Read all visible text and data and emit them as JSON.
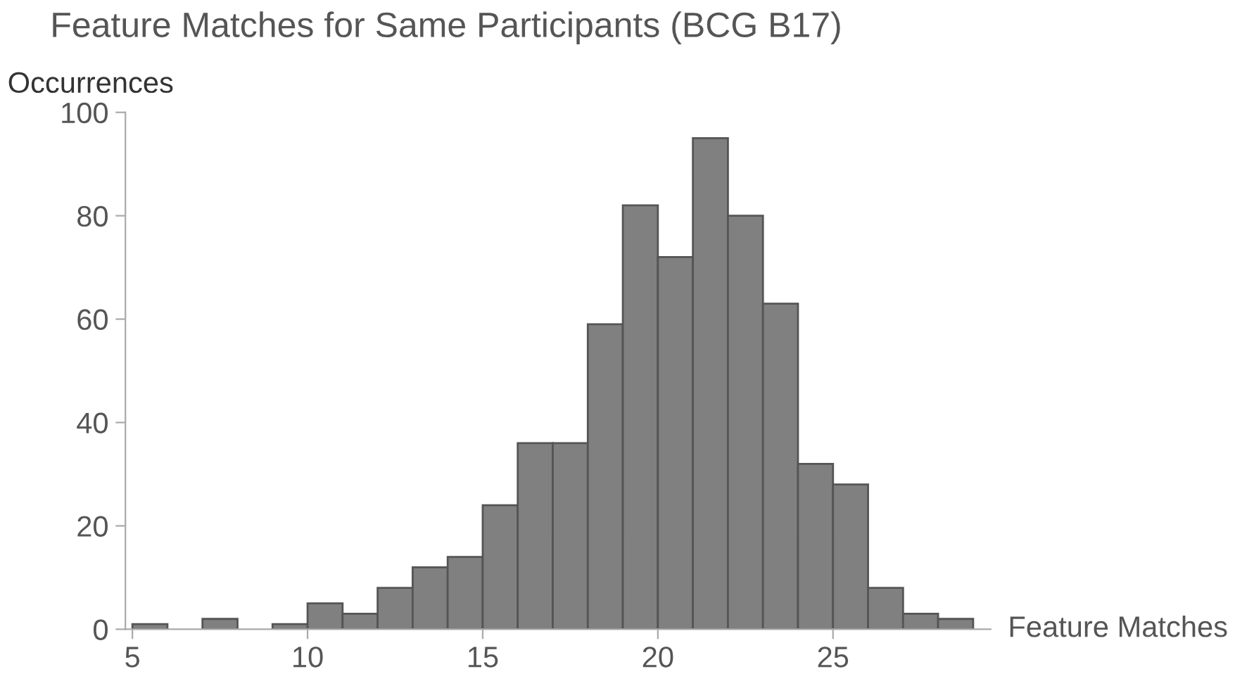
{
  "chart_data": {
    "type": "histogram",
    "title": "Feature Matches for Same Participants (BCG B17)",
    "xlabel": "Feature Matches",
    "ylabel": "Occurrences",
    "bins": [
      5,
      6,
      7,
      8,
      9,
      10,
      11,
      12,
      13,
      14,
      15,
      16,
      17,
      18,
      19,
      20,
      21,
      22,
      23,
      24,
      25,
      26,
      27,
      28,
      29
    ],
    "values": [
      1,
      0,
      2,
      0,
      1,
      5,
      3,
      8,
      12,
      14,
      24,
      36,
      36,
      59,
      82,
      72,
      95,
      80,
      63,
      32,
      28,
      8,
      3,
      2
    ],
    "color": "#808080",
    "xlim": [
      4.8,
      29.5
    ],
    "ylim": [
      0,
      100
    ],
    "xticks": [
      5,
      10,
      15,
      20,
      25
    ],
    "yticks": [
      0,
      20,
      40,
      60,
      80,
      100
    ],
    "grid": false
  }
}
